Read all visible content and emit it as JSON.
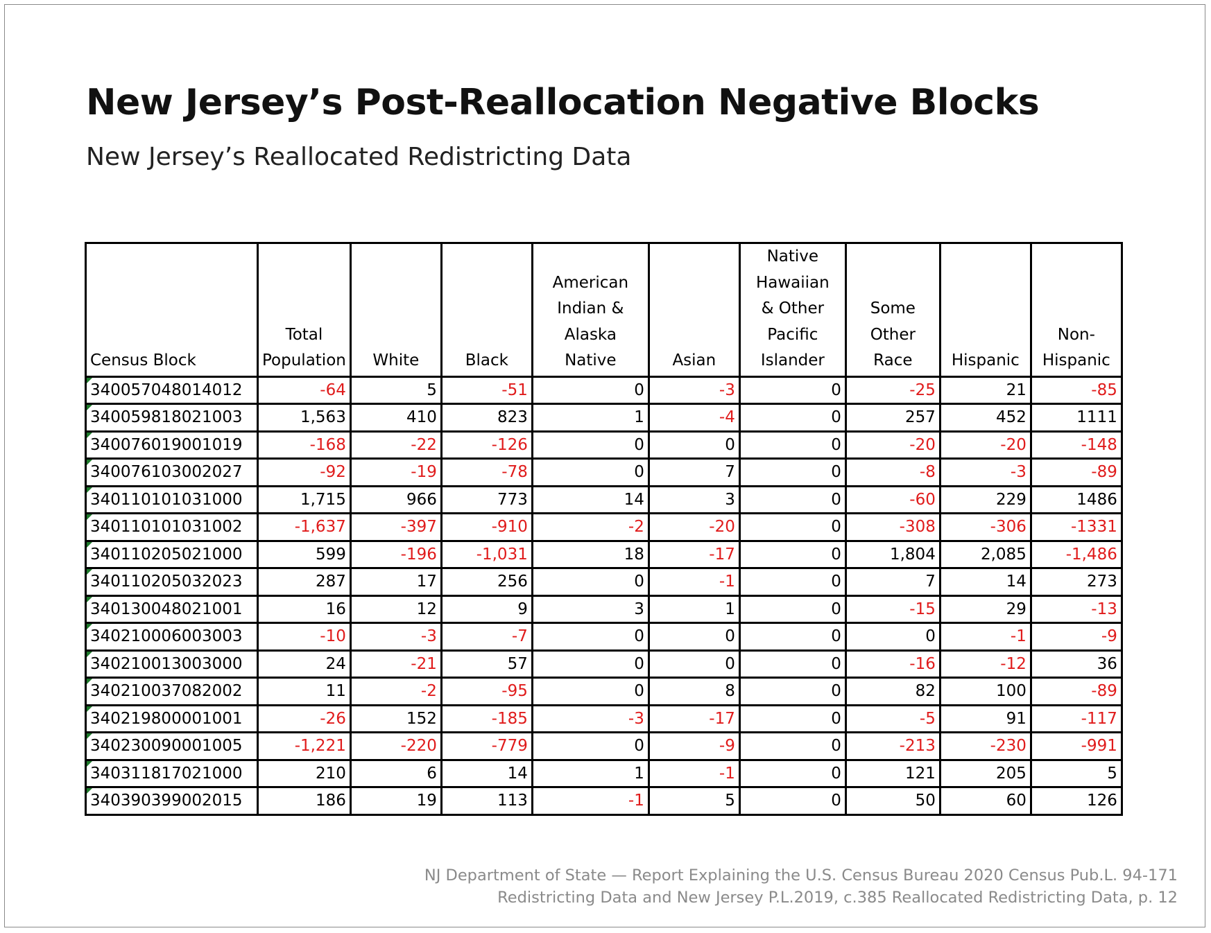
{
  "title": "New Jersey’s Post-Reallocation Negative Blocks",
  "subtitle": "New Jersey’s Reallocated Redistricting Data",
  "colors": {
    "negative": "#e01b1b",
    "positive": "#000000",
    "footer": "#8a8a8a",
    "cell_marker": "#1f7a2c"
  },
  "table": {
    "headers": [
      [
        "Census Block"
      ],
      [
        "Total",
        "Population"
      ],
      [
        "White"
      ],
      [
        "Black"
      ],
      [
        "American",
        "Indian &",
        "Alaska",
        "Native"
      ],
      [
        "Asian"
      ],
      [
        "Native",
        "Hawaiian",
        "& Other",
        "Pacific",
        "Islander"
      ],
      [
        "Some",
        "Other",
        "Race"
      ],
      [
        "Hispanic"
      ],
      [
        "Non-",
        "Hispanic"
      ]
    ],
    "rows": [
      [
        "340057048014012",
        "-64",
        "5",
        "-51",
        "0",
        "-3",
        "0",
        "-25",
        "21",
        "-85"
      ],
      [
        "340059818021003",
        "1,563",
        "410",
        "823",
        "1",
        "-4",
        "0",
        "257",
        "452",
        "1111"
      ],
      [
        "340076019001019",
        "-168",
        "-22",
        "-126",
        "0",
        "0",
        "0",
        "-20",
        "-20",
        "-148"
      ],
      [
        "340076103002027",
        "-92",
        "-19",
        "-78",
        "0",
        "7",
        "0",
        "-8",
        "-3",
        "-89"
      ],
      [
        "340110101031000",
        "1,715",
        "966",
        "773",
        "14",
        "3",
        "0",
        "-60",
        "229",
        "1486"
      ],
      [
        "340110101031002",
        "-1,637",
        "-397",
        "-910",
        "-2",
        "-20",
        "0",
        "-308",
        "-306",
        "-1331"
      ],
      [
        "340110205021000",
        "599",
        "-196",
        "-1,031",
        "18",
        "-17",
        "0",
        "1,804",
        "2,085",
        "-1,486"
      ],
      [
        "340110205032023",
        "287",
        "17",
        "256",
        "0",
        "-1",
        "0",
        "7",
        "14",
        "273"
      ],
      [
        "340130048021001",
        "16",
        "12",
        "9",
        "3",
        "1",
        "0",
        "-15",
        "29",
        "-13"
      ],
      [
        "340210006003003",
        "-10",
        "-3",
        "-7",
        "0",
        "0",
        "0",
        "0",
        "-1",
        "-9"
      ],
      [
        "340210013003000",
        "24",
        "-21",
        "57",
        "0",
        "0",
        "0",
        "-16",
        "-12",
        "36"
      ],
      [
        "340210037082002",
        "11",
        "-2",
        "-95",
        "0",
        "8",
        "0",
        "82",
        "100",
        "-89"
      ],
      [
        "340219800001001",
        "-26",
        "152",
        "-185",
        "-3",
        "-17",
        "0",
        "-5",
        "91",
        "-117"
      ],
      [
        "340230090001005",
        "-1,221",
        "-220",
        "-779",
        "0",
        "-9",
        "0",
        "-213",
        "-230",
        "-991"
      ],
      [
        "340311817021000",
        "210",
        "6",
        "14",
        "1",
        "-1",
        "0",
        "121",
        "205",
        "5"
      ],
      [
        "340390399002015",
        "186",
        "19",
        "113",
        "-1",
        "5",
        "0",
        "50",
        "60",
        "126"
      ]
    ]
  },
  "footer": {
    "line1": "NJ Department of State — Report Explaining the U.S. Census Bureau 2020 Census Pub.L. 94-171",
    "line2": "Redistricting Data and New Jersey P.L.2019, c.385 Reallocated Redistricting Data, p. 12"
  }
}
